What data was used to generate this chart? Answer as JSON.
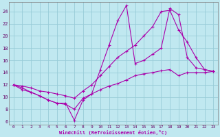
{
  "xlabel": "Windchill (Refroidissement éolien,°C)",
  "bg_color": "#c0e8f0",
  "grid_color": "#98ccd8",
  "line_color": "#aa00aa",
  "xlim": [
    -0.5,
    23.5
  ],
  "ylim": [
    5.5,
    25.5
  ],
  "xticks": [
    0,
    1,
    2,
    3,
    4,
    5,
    6,
    7,
    8,
    9,
    10,
    11,
    12,
    13,
    14,
    15,
    16,
    17,
    18,
    19,
    20,
    21,
    22,
    23
  ],
  "yticks": [
    6,
    8,
    10,
    12,
    14,
    16,
    18,
    20,
    22,
    24
  ],
  "line1_x": [
    0,
    1,
    2,
    3,
    4,
    5,
    6,
    7,
    8,
    9,
    10,
    11,
    12,
    13,
    14,
    15,
    16,
    17,
    18,
    19,
    20,
    21,
    22,
    23
  ],
  "line1_y": [
    12.0,
    11.2,
    10.8,
    10.2,
    9.5,
    9.0,
    8.8,
    8.0,
    9.8,
    10.5,
    11.2,
    11.8,
    12.2,
    12.8,
    13.5,
    13.8,
    14.0,
    14.3,
    14.5,
    13.5,
    14.0,
    14.0,
    14.0,
    14.2
  ],
  "line2_x": [
    0,
    1,
    2,
    3,
    4,
    5,
    6,
    7,
    8,
    9,
    10,
    11,
    12,
    13,
    14,
    15,
    16,
    17,
    18,
    19,
    20,
    21,
    22,
    23
  ],
  "line2_y": [
    12.0,
    11.5,
    10.8,
    10.2,
    9.5,
    9.0,
    9.0,
    6.2,
    9.5,
    10.5,
    14.5,
    18.5,
    22.5,
    25.0,
    15.5,
    16.0,
    17.0,
    18.0,
    24.5,
    23.5,
    16.5,
    14.8,
    14.5,
    14.2
  ],
  "line3_x": [
    0,
    1,
    2,
    3,
    4,
    5,
    6,
    7,
    8,
    9,
    10,
    11,
    12,
    13,
    14,
    15,
    16,
    17,
    18,
    19,
    20,
    21,
    22,
    23
  ],
  "line3_y": [
    12.0,
    11.8,
    11.5,
    11.0,
    10.8,
    10.5,
    10.2,
    9.8,
    11.0,
    12.0,
    13.5,
    15.0,
    16.5,
    17.5,
    18.5,
    20.0,
    21.5,
    24.0,
    24.2,
    21.0,
    19.0,
    16.5,
    14.5,
    14.2
  ]
}
